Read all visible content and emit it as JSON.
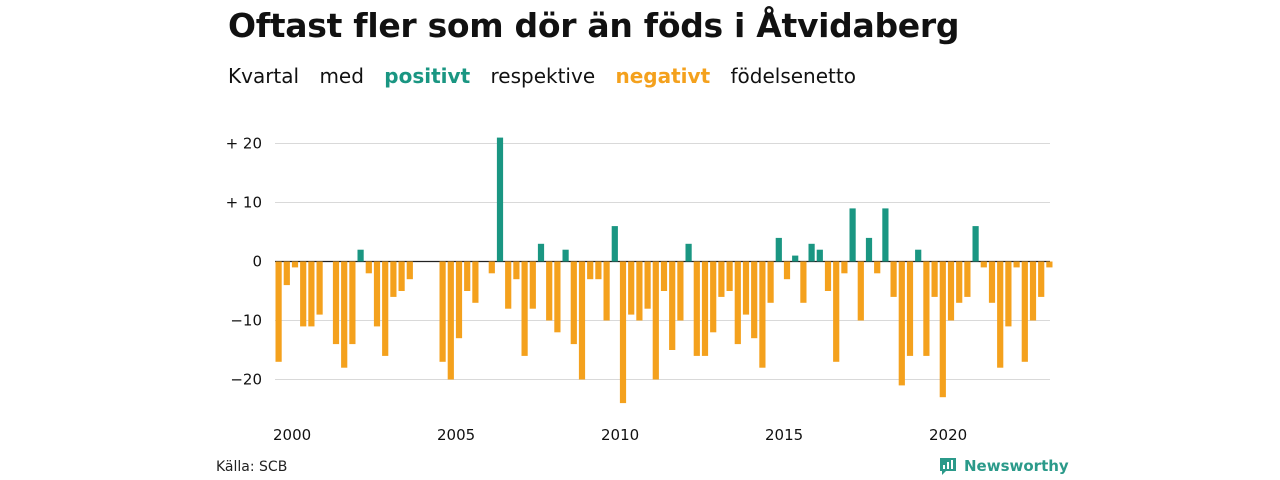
{
  "title": "Oftast fler som dör än föds i Åtvidaberg",
  "subtitle": {
    "part1": "Kvartal",
    "part2": "med",
    "positive": "positivt",
    "part3": "respektive",
    "negative": "negativt",
    "part4": "födelsenetto"
  },
  "source": "Källa: SCB",
  "brand": "Newsworthy",
  "colors": {
    "positive": "#1a9682",
    "negative": "#f4a11d",
    "grid": "#d9d9d9",
    "zero": "#222222"
  },
  "chart_data": {
    "type": "bar",
    "x_start": "2000Q1",
    "xlim": [
      "2000Q1",
      "2023Q4"
    ],
    "ylim": [
      -24,
      21
    ],
    "grid": true,
    "y_ticks": [
      {
        "value": 20,
        "label": "+ 20"
      },
      {
        "value": 10,
        "label": "+ 10"
      },
      {
        "value": 0,
        "label": "0"
      },
      {
        "value": -10,
        "label": "−10"
      },
      {
        "value": -20,
        "label": "−20"
      }
    ],
    "x_ticks": [
      {
        "quarter_index": 0,
        "label": "2000"
      },
      {
        "quarter_index": 20,
        "label": "2005"
      },
      {
        "quarter_index": 40,
        "label": "2010"
      },
      {
        "quarter_index": 60,
        "label": "2015"
      },
      {
        "quarter_index": 80,
        "label": "2020"
      }
    ],
    "values": [
      -17,
      -4,
      -1,
      -11,
      -11,
      -9,
      0,
      -14,
      -18,
      -14,
      2,
      -2,
      -11,
      -16,
      -6,
      -5,
      -3,
      0,
      0,
      0,
      -17,
      -20,
      -13,
      -5,
      -7,
      0,
      -2,
      21,
      -8,
      -3,
      -16,
      -8,
      3,
      -10,
      -12,
      2,
      -14,
      -20,
      -3,
      -3,
      -10,
      6,
      -24,
      -9,
      -10,
      -8,
      -20,
      -5,
      -15,
      -10,
      3,
      -16,
      -16,
      -12,
      -6,
      -5,
      -14,
      -9,
      -13,
      -18,
      -7,
      4,
      -3,
      1,
      -7,
      3,
      2,
      -5,
      -17,
      -2,
      9,
      -10,
      4,
      -2,
      9,
      -6,
      -21,
      -16,
      2,
      -16,
      -6,
      -23,
      -10,
      -7,
      -6,
      6,
      -1,
      -7,
      -18,
      -11,
      -1,
      -17,
      -10,
      -6,
      -1
    ]
  }
}
